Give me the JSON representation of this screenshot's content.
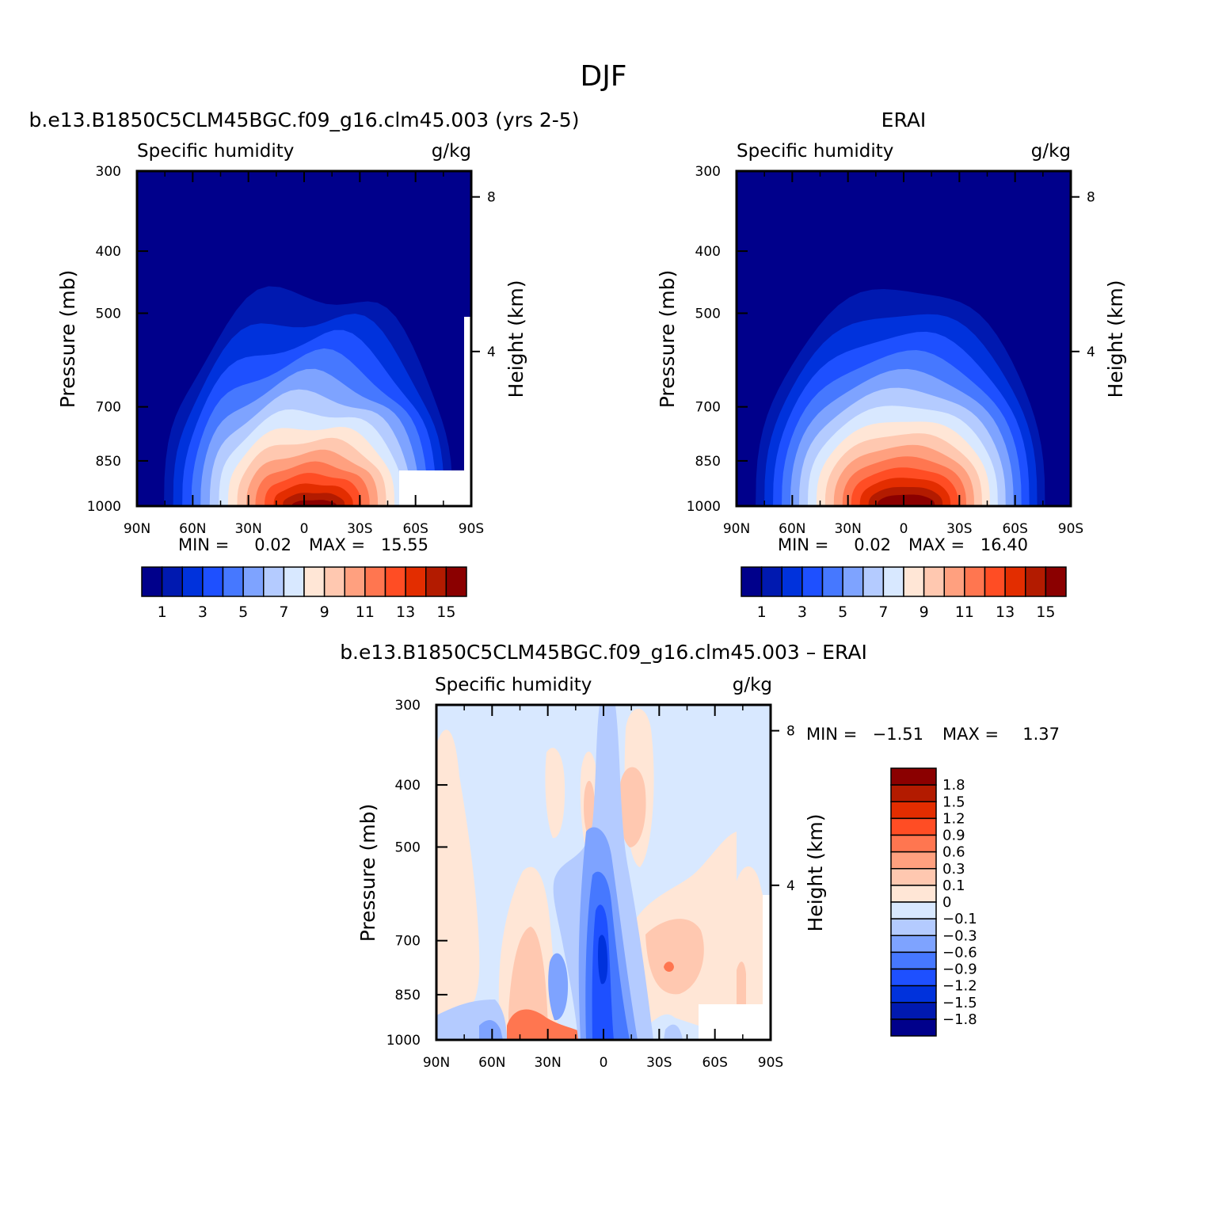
{
  "figure_title": "DJF",
  "chart_data": [
    {
      "type": "heatmap",
      "panel_id": "model",
      "title": "b.e13.B1850C5CLM45BGC.f09_g16.clm45.003 (yrs 2-5)",
      "left_label": "Specific humidity",
      "right_label": "g/kg",
      "ylabel": "Pressure (mb)",
      "ylabel_right": "Height (km)",
      "x_ticks": [
        "90N",
        "60N",
        "30N",
        "0",
        "30S",
        "60S",
        "90S"
      ],
      "x_values": [
        90,
        60,
        30,
        0,
        -30,
        -60,
        -90
      ],
      "y_ticks": [
        "300",
        "400",
        "500",
        "700",
        "850",
        "1000"
      ],
      "y_values": [
        300,
        400,
        500,
        700,
        850,
        1000
      ],
      "right_ticks": [
        "8",
        "4"
      ],
      "right_values": [
        8,
        4
      ],
      "min_label": "MIN =",
      "min_value": "0.02",
      "max_label": "MAX =",
      "max_value": "15.55",
      "peak_value": 15.55,
      "colorbar_labels": [
        "1",
        "3",
        "5",
        "7",
        "9",
        "11",
        "13",
        "15"
      ],
      "colorbar_levels": [
        0,
        1,
        2,
        3,
        4,
        5,
        6,
        7,
        8,
        9,
        10,
        11,
        12,
        13,
        14,
        15
      ],
      "colors": [
        "#00008b",
        "#0019b0",
        "#0032dc",
        "#1e50ff",
        "#4678ff",
        "#7ea3ff",
        "#b4cbff",
        "#d8e8ff",
        "#ffe6d6",
        "#ffc8b0",
        "#ffa07f",
        "#ff7650",
        "#ff4d24",
        "#e32d00",
        "#b31b00",
        "#8b0000"
      ]
    },
    {
      "type": "heatmap",
      "panel_id": "obs",
      "title": "ERAI",
      "left_label": "Specific humidity",
      "right_label": "g/kg",
      "ylabel": "Pressure (mb)",
      "ylabel_right": "Height (km)",
      "x_ticks": [
        "90N",
        "60N",
        "30N",
        "0",
        "30S",
        "60S",
        "90S"
      ],
      "x_values": [
        90,
        60,
        30,
        0,
        -30,
        -60,
        -90
      ],
      "y_ticks": [
        "300",
        "400",
        "500",
        "700",
        "850",
        "1000"
      ],
      "y_values": [
        300,
        400,
        500,
        700,
        850,
        1000
      ],
      "right_ticks": [
        "8",
        "4"
      ],
      "right_values": [
        8,
        4
      ],
      "min_label": "MIN =",
      "min_value": "0.02",
      "max_label": "MAX =",
      "max_value": "16.40",
      "peak_value": 16.4,
      "colorbar_labels": [
        "1",
        "3",
        "5",
        "7",
        "9",
        "11",
        "13",
        "15"
      ],
      "colorbar_levels": [
        0,
        1,
        2,
        3,
        4,
        5,
        6,
        7,
        8,
        9,
        10,
        11,
        12,
        13,
        14,
        15
      ],
      "colors": [
        "#00008b",
        "#0019b0",
        "#0032dc",
        "#1e50ff",
        "#4678ff",
        "#7ea3ff",
        "#b4cbff",
        "#d8e8ff",
        "#ffe6d6",
        "#ffc8b0",
        "#ffa07f",
        "#ff7650",
        "#ff4d24",
        "#e32d00",
        "#b31b00",
        "#8b0000"
      ]
    },
    {
      "type": "heatmap",
      "panel_id": "diff",
      "title": "b.e13.B1850C5CLM45BGC.f09_g16.clm45.003 – ERAI",
      "left_label": "Specific humidity",
      "right_label": "g/kg",
      "ylabel": "Pressure (mb)",
      "ylabel_right": "Height (km)",
      "x_ticks": [
        "90N",
        "60N",
        "30N",
        "0",
        "30S",
        "60S",
        "90S"
      ],
      "x_values": [
        90,
        60,
        30,
        0,
        -30,
        -60,
        -90
      ],
      "y_ticks": [
        "300",
        "400",
        "500",
        "700",
        "850",
        "1000"
      ],
      "y_values": [
        300,
        400,
        500,
        700,
        850,
        1000
      ],
      "right_ticks": [
        "8",
        "4"
      ],
      "right_values": [
        8,
        4
      ],
      "min_label": "MIN =",
      "min_value": "−1.51",
      "max_label": "MAX =",
      "max_value": "1.37",
      "colorbar_labels": [
        "1.8",
        "1.5",
        "1.2",
        "0.9",
        "0.6",
        "0.3",
        "0.1",
        "0",
        "−0.1",
        "−0.3",
        "−0.6",
        "−0.9",
        "−1.2",
        "−1.5",
        "−1.8"
      ],
      "colors": [
        "#8b0000",
        "#b31b00",
        "#e32d00",
        "#ff4d24",
        "#ff7650",
        "#ffa07f",
        "#ffc8b0",
        "#ffe6d6",
        "#d8e8ff",
        "#b4cbff",
        "#7ea3ff",
        "#4678ff",
        "#1e50ff",
        "#0032dc",
        "#0019b0",
        "#00008b"
      ]
    }
  ]
}
